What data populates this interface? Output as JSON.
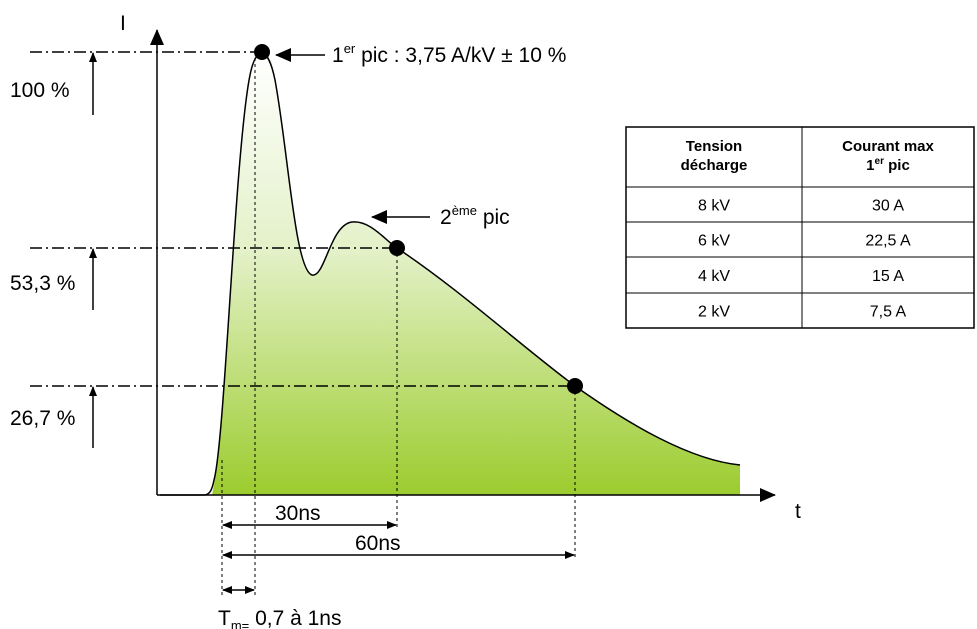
{
  "axes": {
    "y": "I",
    "x": "t"
  },
  "levels": [
    "100 %",
    "53,3 %",
    "26,7 %"
  ],
  "annotations": {
    "first_peak": {
      "prefix": "1",
      "sup": "er",
      "rest": " pic : 3,75 A/kV ± 10 %"
    },
    "second_peak": {
      "prefix": "2",
      "sup": "ème",
      "rest": " pic"
    }
  },
  "dimensions": [
    "30ns",
    "60ns"
  ],
  "rise_time": {
    "prefix": "T",
    "sub": "m=",
    "rest": " 0,7 à 1ns"
  },
  "table": {
    "headers": [
      [
        "Tension",
        "décharge"
      ],
      {
        "line1": "Courant max",
        "prefix": "1",
        "sup": "er",
        "rest": " pic"
      }
    ],
    "rows": [
      [
        "8 kV",
        "30 A"
      ],
      [
        "6 kV",
        "22,5 A"
      ],
      [
        "4 kV",
        "15 A"
      ],
      [
        "2 kV",
        "7,5 A"
      ]
    ]
  }
}
